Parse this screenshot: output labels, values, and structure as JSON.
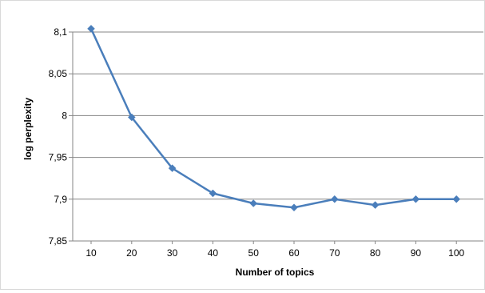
{
  "chart_data": {
    "type": "line",
    "x": [
      10,
      20,
      30,
      40,
      50,
      60,
      70,
      80,
      90,
      100
    ],
    "categories": [
      "10",
      "20",
      "30",
      "40",
      "50",
      "60",
      "70",
      "80",
      "90",
      "100"
    ],
    "series": [
      {
        "values": [
          8.104,
          7.998,
          7.937,
          7.907,
          7.895,
          7.89,
          7.9,
          7.893,
          7.9,
          7.9
        ],
        "color": "#4a7ebb",
        "marker": "diamond"
      }
    ],
    "title": "",
    "xlabel": "Number of topics",
    "ylabel": "log perplexity",
    "ylim": [
      7.85,
      8.1
    ],
    "yticks": [
      7.85,
      7.9,
      7.95,
      8,
      8.05,
      8.1
    ],
    "ytick_labels": [
      "7,85",
      "7,9",
      "7,95",
      "8",
      "8,05",
      "8,1"
    ],
    "grid": "horizontal",
    "legend": "none"
  }
}
